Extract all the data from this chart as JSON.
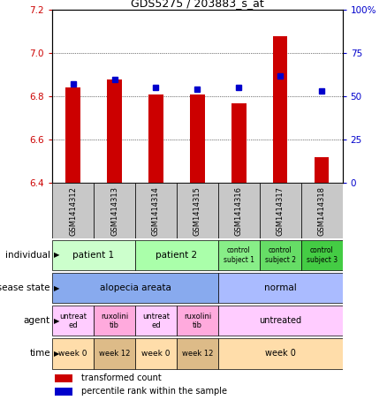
{
  "title": "GDS5275 / 203883_s_at",
  "samples": [
    "GSM1414312",
    "GSM1414313",
    "GSM1414314",
    "GSM1414315",
    "GSM1414316",
    "GSM1414317",
    "GSM1414318"
  ],
  "transformed_count": [
    6.84,
    6.88,
    6.81,
    6.81,
    6.77,
    7.08,
    6.52
  ],
  "percentile_rank": [
    57,
    60,
    55,
    54,
    55,
    62,
    53
  ],
  "ylim_left": [
    6.4,
    7.2
  ],
  "ylim_right": [
    0,
    100
  ],
  "yticks_left": [
    6.4,
    6.6,
    6.8,
    7.0,
    7.2
  ],
  "yticks_right": [
    0,
    25,
    50,
    75,
    100
  ],
  "ytick_labels_right": [
    "0",
    "25",
    "50",
    "75",
    "100%"
  ],
  "bar_color": "#cc0000",
  "dot_color": "#0000cc",
  "rows": [
    {
      "label": "individual",
      "cells": [
        {
          "text": "patient 1",
          "span": 2,
          "color": "#ccffcc",
          "fontsize": 7.5
        },
        {
          "text": "patient 2",
          "span": 2,
          "color": "#aaffaa",
          "fontsize": 7.5
        },
        {
          "text": "control\nsubject 1",
          "span": 1,
          "color": "#88ee88",
          "fontsize": 5.5
        },
        {
          "text": "control\nsubject 2",
          "span": 1,
          "color": "#66dd66",
          "fontsize": 5.5
        },
        {
          "text": "control\nsubject 3",
          "span": 1,
          "color": "#44cc44",
          "fontsize": 5.5
        }
      ]
    },
    {
      "label": "disease state",
      "cells": [
        {
          "text": "alopecia areata",
          "span": 4,
          "color": "#88aaee",
          "fontsize": 7.5
        },
        {
          "text": "normal",
          "span": 3,
          "color": "#aabbff",
          "fontsize": 7.5
        }
      ]
    },
    {
      "label": "agent",
      "cells": [
        {
          "text": "untreat\ned",
          "span": 1,
          "color": "#ffccff",
          "fontsize": 6
        },
        {
          "text": "ruxolini\ntib",
          "span": 1,
          "color": "#ffaadd",
          "fontsize": 6
        },
        {
          "text": "untreat\ned",
          "span": 1,
          "color": "#ffccff",
          "fontsize": 6
        },
        {
          "text": "ruxolini\ntib",
          "span": 1,
          "color": "#ffaadd",
          "fontsize": 6
        },
        {
          "text": "untreated",
          "span": 3,
          "color": "#ffccff",
          "fontsize": 7
        }
      ]
    },
    {
      "label": "time",
      "cells": [
        {
          "text": "week 0",
          "span": 1,
          "color": "#ffddaa",
          "fontsize": 6.5
        },
        {
          "text": "week 12",
          "span": 1,
          "color": "#ddbb88",
          "fontsize": 6
        },
        {
          "text": "week 0",
          "span": 1,
          "color": "#ffddaa",
          "fontsize": 6.5
        },
        {
          "text": "week 12",
          "span": 1,
          "color": "#ddbb88",
          "fontsize": 6
        },
        {
          "text": "week 0",
          "span": 3,
          "color": "#ffddaa",
          "fontsize": 7
        }
      ]
    }
  ],
  "legend_items": [
    {
      "color": "#cc0000",
      "label": "transformed count"
    },
    {
      "color": "#0000cc",
      "label": "percentile rank within the sample"
    }
  ],
  "tick_label_color_left": "#cc0000",
  "tick_label_color_right": "#0000cc",
  "n_samples": 7,
  "sample_bg_color": "#c8c8c8"
}
